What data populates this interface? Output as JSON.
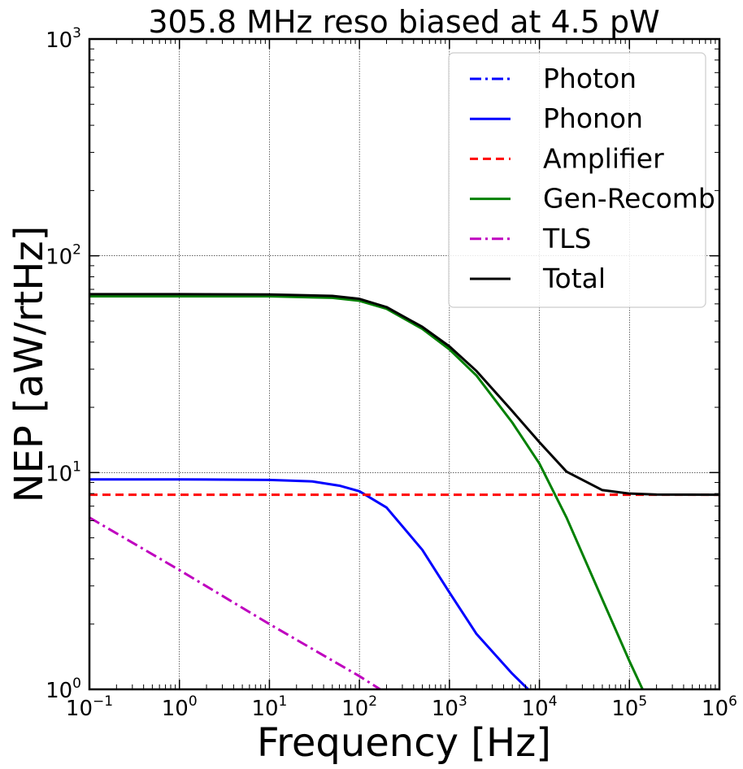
{
  "chart_data": {
    "type": "line",
    "title": "305.8 MHz reso biased at 4.5 pW",
    "xlabel": "Frequency [Hz]",
    "ylabel": "NEP [aW/rtHz]",
    "xscale": "log",
    "yscale": "log",
    "xlim": [
      0.1,
      1000000
    ],
    "ylim": [
      1,
      1000
    ],
    "grid": true,
    "legend_position": "top-right",
    "x_ticks": [
      {
        "value": 0.1,
        "base": "10",
        "exp": "−1"
      },
      {
        "value": 1,
        "base": "10",
        "exp": "0"
      },
      {
        "value": 10,
        "base": "10",
        "exp": "1"
      },
      {
        "value": 100,
        "base": "10",
        "exp": "2"
      },
      {
        "value": 1000,
        "base": "10",
        "exp": "3"
      },
      {
        "value": 10000,
        "base": "10",
        "exp": "4"
      },
      {
        "value": 100000,
        "base": "10",
        "exp": "5"
      },
      {
        "value": 1000000,
        "base": "10",
        "exp": "6"
      }
    ],
    "y_ticks": [
      {
        "value": 1,
        "base": "10",
        "exp": "0"
      },
      {
        "value": 10,
        "base": "10",
        "exp": "1"
      },
      {
        "value": 100,
        "base": "10",
        "exp": "2"
      },
      {
        "value": 1000,
        "base": "10",
        "exp": "3"
      }
    ],
    "series": [
      {
        "name": "Photon",
        "color": "#0000ff",
        "dash": "dashdot",
        "x": [],
        "y": []
      },
      {
        "name": "Phonon",
        "color": "#0000ff",
        "dash": "solid",
        "x": [
          0.1,
          1,
          10,
          30,
          60,
          100,
          200,
          500,
          1000,
          2000,
          5000,
          7500
        ],
        "y": [
          9.3,
          9.3,
          9.25,
          9.1,
          8.7,
          8.2,
          6.9,
          4.4,
          2.8,
          1.8,
          1.18,
          1.0
        ]
      },
      {
        "name": "Amplifier",
        "color": "#ff0000",
        "dash": "dashed",
        "x": [
          0.1,
          1000000
        ],
        "y": [
          7.9,
          7.9
        ]
      },
      {
        "name": "Gen-Recomb",
        "color": "#008000",
        "dash": "solid",
        "x": [
          0.1,
          1,
          10,
          50,
          100,
          200,
          500,
          1000,
          2000,
          5000,
          10000,
          20000,
          50000,
          100000,
          140000
        ],
        "y": [
          65,
          65,
          65,
          64,
          62,
          57,
          46,
          37,
          28,
          17,
          11,
          6.2,
          2.6,
          1.35,
          1.0
        ]
      },
      {
        "name": "TLS",
        "color": "#bf00bf",
        "dash": "dashdot",
        "x": [
          0.1,
          1,
          10,
          100,
          170
        ],
        "y": [
          6.2,
          3.55,
          2.0,
          1.15,
          1.0
        ]
      },
      {
        "name": "Total",
        "color": "#000000",
        "dash": "solid",
        "x": [
          0.1,
          1,
          10,
          50,
          100,
          200,
          500,
          1000,
          2000,
          5000,
          10000,
          20000,
          50000,
          100000,
          200000,
          1000000
        ],
        "y": [
          66.5,
          66.5,
          66.3,
          65.3,
          63.3,
          58,
          47,
          38.2,
          29.4,
          19.2,
          13.8,
          10.1,
          8.3,
          8.0,
          7.92,
          7.9
        ]
      }
    ]
  }
}
